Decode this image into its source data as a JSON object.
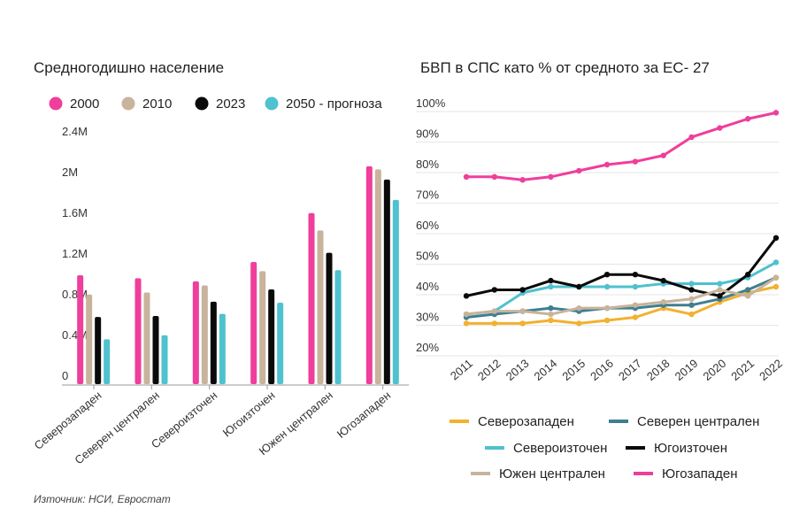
{
  "source_note": "Източник: НСИ, Евростат",
  "chart_data": [
    {
      "type": "bar",
      "title": "Средногодишно население",
      "categories": [
        "Северозападен",
        "Северен централен",
        "Североизточен",
        "Югоизточен",
        "Южен централен",
        "Югозападен"
      ],
      "series": [
        {
          "name": "2000",
          "color": "#ef3e9b",
          "values": [
            1070000,
            1040000,
            1010000,
            1200000,
            1680000,
            2140000
          ]
        },
        {
          "name": "2010",
          "color": "#c8b39c",
          "values": [
            880000,
            900000,
            970000,
            1110000,
            1510000,
            2110000
          ]
        },
        {
          "name": "2023",
          "color": "#0a0a0a",
          "values": [
            660000,
            670000,
            810000,
            930000,
            1290000,
            2010000
          ]
        },
        {
          "name": "2050 - прогноза",
          "color": "#4fc1cf",
          "values": [
            440000,
            480000,
            690000,
            800000,
            1120000,
            1810000
          ]
        }
      ],
      "yticks": [
        "0",
        "0.4M",
        "0.8M",
        "1.2M",
        "1.6M",
        "2M",
        "2.4M"
      ],
      "ylim": [
        0,
        2400000
      ],
      "legend": "top"
    },
    {
      "type": "line",
      "title": "БВП в СПС като % от средното за ЕС- 27",
      "x": [
        "2011",
        "2012",
        "2013",
        "2014",
        "2015",
        "2016",
        "2017",
        "2018",
        "2019",
        "2020",
        "2021",
        "2022"
      ],
      "yticks": [
        "20%",
        "30%",
        "40%",
        "50%",
        "60%",
        "70%",
        "80%",
        "90%",
        "100%"
      ],
      "ylim": [
        20,
        100
      ],
      "legend": "bottom",
      "series": [
        {
          "name": "Северозападен",
          "color": "#f2b130",
          "values": [
            28,
            28,
            28,
            29,
            28,
            29,
            30,
            33,
            31,
            35,
            38,
            40
          ]
        },
        {
          "name": "Северен централен",
          "color": "#3f7f8f",
          "values": [
            30,
            31,
            32,
            33,
            32,
            33,
            33,
            34,
            34,
            36,
            39,
            43
          ]
        },
        {
          "name": "Североизточен",
          "color": "#4fc1cf",
          "values": [
            31,
            32,
            38,
            40,
            40,
            40,
            40,
            41,
            41,
            41,
            43,
            48
          ]
        },
        {
          "name": "Югоизточен",
          "color": "#0a0a0a",
          "values": [
            37,
            39,
            39,
            42,
            40,
            44,
            44,
            42,
            39,
            37,
            44,
            56
          ]
        },
        {
          "name": "Южен централен",
          "color": "#c8b39c",
          "values": [
            31,
            32,
            32,
            31,
            33,
            33,
            34,
            35,
            36,
            39,
            37,
            43
          ]
        },
        {
          "name": "Югозападен",
          "color": "#ef3e9b",
          "values": [
            76,
            76,
            75,
            76,
            78,
            80,
            81,
            83,
            89,
            92,
            95,
            97
          ]
        }
      ]
    }
  ]
}
